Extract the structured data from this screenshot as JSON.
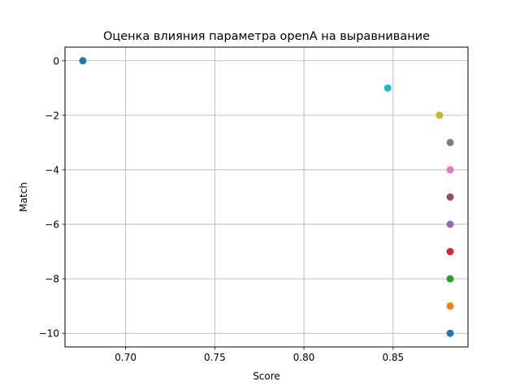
{
  "chart_data": {
    "type": "scatter",
    "title": "Оценка влияния параметра openA на выравнивание",
    "xlabel": "Score",
    "ylabel": "Match",
    "xlim": [
      0.666,
      0.892
    ],
    "ylim": [
      -10.5,
      0.5
    ],
    "xticks": [
      0.7,
      0.75,
      0.8,
      0.85
    ],
    "xtick_labels": [
      "0.70",
      "0.75",
      "0.80",
      "0.85"
    ],
    "yticks": [
      0,
      -2,
      -4,
      -6,
      -8,
      -10
    ],
    "ytick_labels": [
      "0",
      "−2",
      "−4",
      "−6",
      "−8",
      "−10"
    ],
    "grid": true,
    "points": [
      {
        "x": 0.676,
        "y": 0,
        "color": "#1f77b4"
      },
      {
        "x": 0.847,
        "y": -1,
        "color": "#17becf"
      },
      {
        "x": 0.876,
        "y": -2,
        "color": "#bcbd22"
      },
      {
        "x": 0.882,
        "y": -3,
        "color": "#7f7f7f"
      },
      {
        "x": 0.882,
        "y": -4,
        "color": "#e377c2"
      },
      {
        "x": 0.882,
        "y": -5,
        "color": "#8c564b"
      },
      {
        "x": 0.882,
        "y": -6,
        "color": "#9467bd"
      },
      {
        "x": 0.882,
        "y": -7,
        "color": "#d62728"
      },
      {
        "x": 0.882,
        "y": -8,
        "color": "#2ca02c"
      },
      {
        "x": 0.882,
        "y": -9,
        "color": "#ff7f0e"
      },
      {
        "x": 0.882,
        "y": -10,
        "color": "#1f77b4"
      }
    ]
  }
}
